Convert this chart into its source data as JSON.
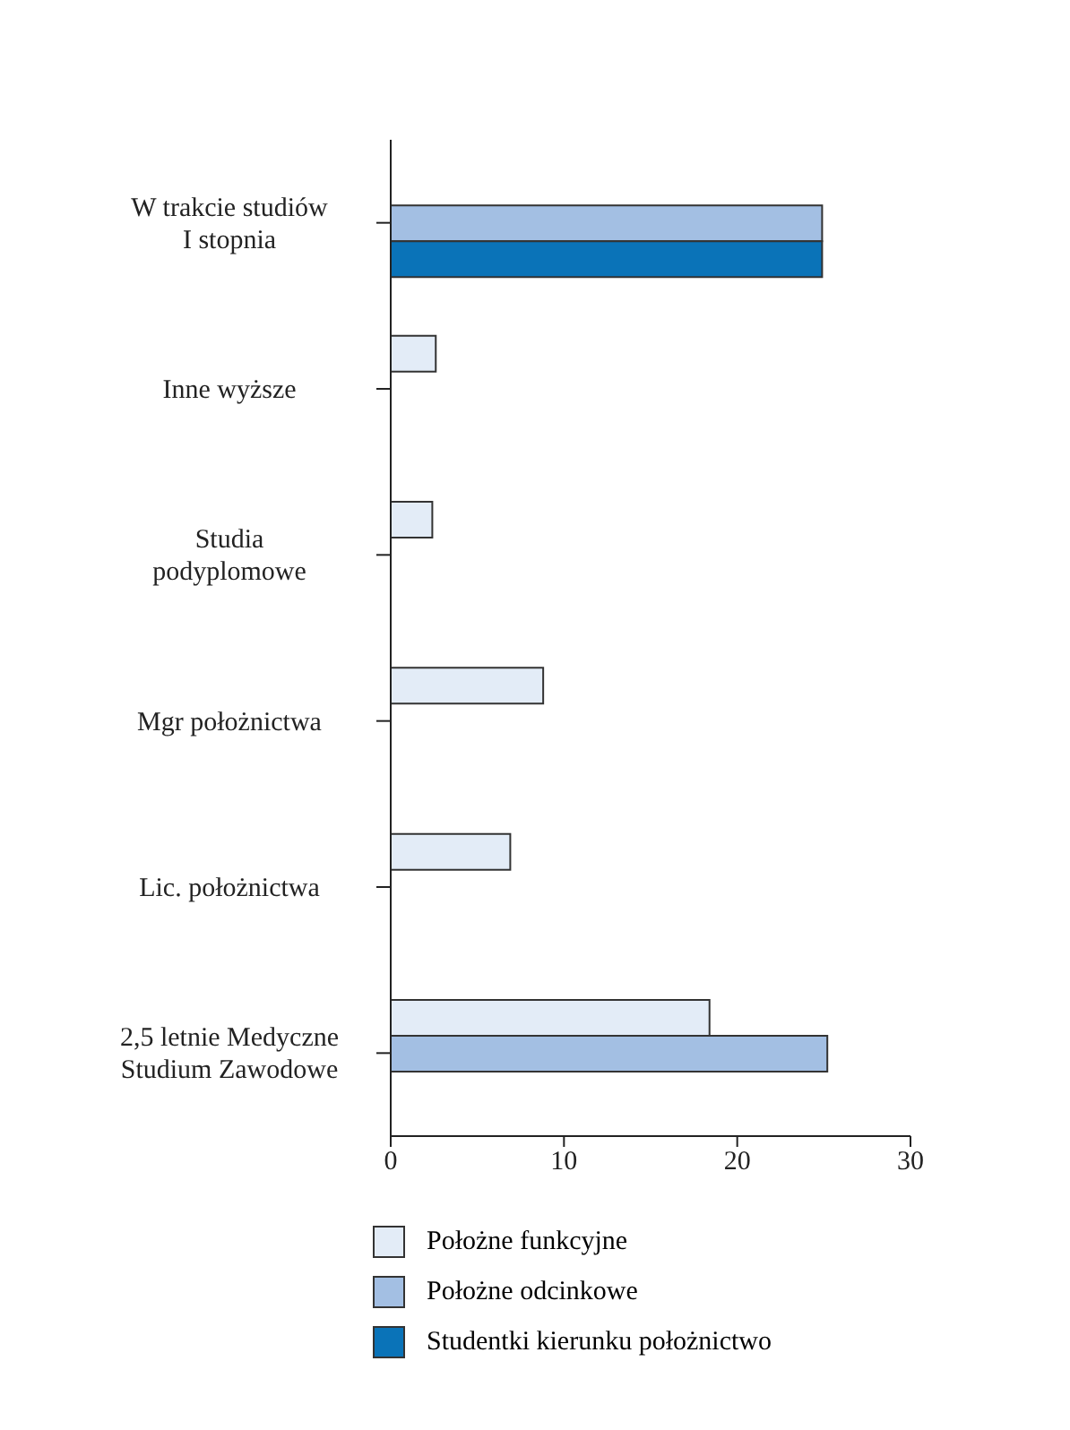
{
  "chart_data": {
    "type": "bar",
    "orientation": "horizontal",
    "categories": [
      "W trakcie studiów\nI stopnia",
      "Inne wyższe",
      "Studia\npodyplomowe",
      "Mgr położnictwa",
      "Lic. położnictwa",
      "2,5 letnie Medyczne\nStudium Zawodowe"
    ],
    "series": [
      {
        "name": "Położne funkcyjne",
        "color": "#e3ecf7",
        "values": [
          null,
          2.6,
          2.4,
          8.8,
          6.9,
          18.4
        ]
      },
      {
        "name": "Położne odcinkowe",
        "color": "#a3bfe3",
        "values": [
          24.9,
          null,
          null,
          null,
          null,
          25.2
        ]
      },
      {
        "name": "Studentki kierunku położnictwo",
        "color": "#0a73b8",
        "values": [
          24.9,
          null,
          null,
          null,
          null,
          null
        ]
      }
    ],
    "xlim": [
      0,
      30
    ],
    "xticks": [
      0,
      10,
      20,
      30
    ],
    "grid": false,
    "legend": "bottom"
  }
}
